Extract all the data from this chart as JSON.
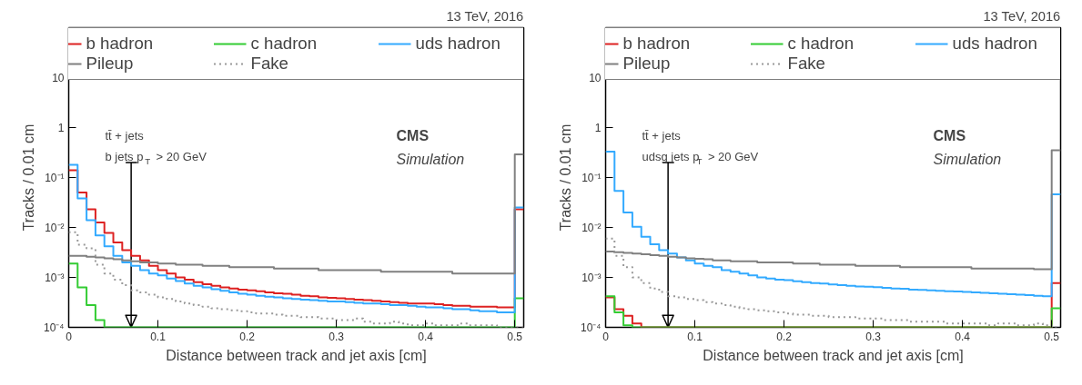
{
  "chart_data": [
    {
      "type": "histogram",
      "title": "13 TeV, 2016",
      "xlabel": "Distance between track and jet axis [cm]",
      "ylabel": "Tracks / 0.01 cm",
      "annotations": [
        "tt̄ + jets",
        "b jets p$_{T}$ > 20 GeV",
        "CMS",
        "Simulation"
      ],
      "bins": [
        0,
        0.01,
        0.02,
        0.03,
        0.04,
        0.05,
        0.06,
        0.07,
        0.08,
        0.09,
        0.1,
        0.11,
        0.12,
        0.13,
        0.14,
        0.15,
        0.16,
        0.17,
        0.18,
        0.19,
        0.2,
        0.21,
        0.22,
        0.23,
        0.24,
        0.25,
        0.26,
        0.27,
        0.28,
        0.29,
        0.3,
        0.31,
        0.32,
        0.33,
        0.34,
        0.35,
        0.36,
        0.37,
        0.38,
        0.39,
        0.4,
        0.41,
        0.42,
        0.43,
        0.44,
        0.45,
        0.46,
        0.47,
        0.48,
        0.49,
        0.5,
        0.51
      ],
      "series": [
        {
          "name": "b hadron",
          "color": "#dd2222",
          "line_style": "solid",
          "values": [
            0.14,
            0.05,
            0.023,
            0.0126,
            0.0078,
            0.005,
            0.0035,
            0.0027,
            0.0022,
            0.0017,
            0.0014,
            0.0012,
            0.001,
            0.0009,
            0.0008,
            0.00073,
            0.00068,
            0.00063,
            0.0006,
            0.00057,
            0.00055,
            0.00053,
            0.0005,
            0.00048,
            0.00047,
            0.00045,
            0.00043,
            0.00042,
            0.0004,
            0.00039,
            0.00038,
            0.00037,
            0.00036,
            0.00035,
            0.00034,
            0.00033,
            0.00032,
            0.00031,
            0.0003,
            0.0003,
            0.0003,
            0.00029,
            0.00028,
            0.00027,
            0.00027,
            0.00026,
            0.00026,
            0.00026,
            0.00025,
            0.00025,
            0.023
          ]
        },
        {
          "name": "c hadron",
          "color": "#33cc33",
          "line_style": "solid",
          "values": [
            0.0019,
            0.00063,
            0.00028,
            0.00014,
            0.0001,
            0.0001,
            0.0001,
            0.0001,
            0.0001,
            0.0001,
            0.0001,
            0.0001,
            0.0001,
            0.0001,
            0.0001,
            0.0001,
            0.0001,
            0.0001,
            0.0001,
            0.0001,
            0.0001,
            0.0001,
            0.0001,
            0.0001,
            0.0001,
            0.0001,
            0.0001,
            0.0001,
            0.0001,
            0.0001,
            0.0001,
            0.0001,
            0.0001,
            0.0001,
            0.0001,
            0.0001,
            0.0001,
            0.0001,
            0.0001,
            0.0001,
            0.0001,
            0.0001,
            0.0001,
            0.0001,
            0.0001,
            0.0001,
            0.0001,
            0.0001,
            0.0001,
            0.0001,
            0.00038
          ]
        },
        {
          "name": "uds hadron",
          "color": "#33aaff",
          "line_style": "solid",
          "values": [
            0.18,
            0.038,
            0.014,
            0.0069,
            0.0042,
            0.0027,
            0.002,
            0.0017,
            0.0014,
            0.0012,
            0.0011,
            0.00095,
            0.00085,
            0.00075,
            0.00068,
            0.00063,
            0.00058,
            0.00054,
            0.0005,
            0.00047,
            0.00045,
            0.00043,
            0.00041,
            0.0004,
            0.00038,
            0.00037,
            0.00036,
            0.00035,
            0.00034,
            0.00033,
            0.00033,
            0.00032,
            0.00031,
            0.0003,
            0.0003,
            0.00029,
            0.00028,
            0.00028,
            0.00027,
            0.00026,
            0.00025,
            0.00025,
            0.00024,
            0.00023,
            0.00023,
            0.00022,
            0.00021,
            0.00021,
            0.0002,
            0.0002,
            0.025
          ]
        },
        {
          "name": "Pileup",
          "color": "#808080",
          "line_style": "solid",
          "values": [
            0.0027,
            0.0027,
            0.0026,
            0.0025,
            0.0024,
            0.0023,
            0.0022,
            0.0021,
            0.002,
            0.002,
            0.0019,
            0.0019,
            0.0018,
            0.0018,
            0.0018,
            0.0017,
            0.0017,
            0.0017,
            0.0016,
            0.0016,
            0.0016,
            0.0016,
            0.0016,
            0.0015,
            0.0015,
            0.0015,
            0.0015,
            0.0015,
            0.0014,
            0.0014,
            0.0014,
            0.0014,
            0.0014,
            0.0014,
            0.0014,
            0.0013,
            0.0013,
            0.0013,
            0.0013,
            0.0013,
            0.0013,
            0.0013,
            0.0013,
            0.0012,
            0.0012,
            0.0012,
            0.0012,
            0.0012,
            0.0012,
            0.0012,
            0.29
          ]
        },
        {
          "name": "Fake",
          "color": "#999999",
          "line_style": "dotted",
          "values": [
            0.008,
            0.0045,
            0.0038,
            0.0018,
            0.0012,
            0.0009,
            0.0007,
            0.00055,
            0.0005,
            0.00045,
            0.0004,
            0.00037,
            0.00033,
            0.0003,
            0.00028,
            0.00026,
            0.00024,
            0.00023,
            0.00022,
            0.00021,
            0.0002,
            0.00019,
            0.00019,
            0.00018,
            0.00017,
            0.00017,
            0.00016,
            0.00016,
            0.00015,
            0.00015,
            0.00014,
            0.00014,
            0.00015,
            0.00013,
            0.00012,
            0.00012,
            0.00013,
            0.00012,
            0.00011,
            0.00011,
            0.00012,
            0.00011,
            0.00011,
            0.00011,
            0.00012,
            0.00011,
            0.00011,
            0.00011,
            0.0001,
            0.0001,
            0.0001
          ]
        }
      ],
      "xlim": [
        0,
        0.51
      ],
      "xticks": [
        0,
        0.1,
        0.2,
        0.3,
        0.4,
        0.5
      ],
      "ylim": [
        0.0001,
        100
      ],
      "log": "y",
      "yticks": [
        {
          "value": 0.0001,
          "label": "10⁻⁴"
        },
        {
          "value": 0.001,
          "label": "10⁻³"
        },
        {
          "value": 0.01,
          "label": "10⁻²"
        },
        {
          "value": 0.1,
          "label": "10⁻¹"
        },
        1,
        10
      ],
      "ref_lines": [
        {
          "axis": "x",
          "value": 0.07,
          "color": "#000000"
        }
      ],
      "legend": "top",
      "grid": false
    },
    {
      "type": "histogram",
      "title": "13 TeV, 2016",
      "xlabel": "Distance between track and jet axis [cm]",
      "ylabel": "Tracks / 0.01 cm",
      "annotations": [
        "tt̄ + jets",
        "udsg jets p$_{T}$ > 20 GeV",
        "CMS",
        "Simulation"
      ],
      "bins": [
        0,
        0.01,
        0.02,
        0.03,
        0.04,
        0.05,
        0.06,
        0.07,
        0.08,
        0.09,
        0.1,
        0.11,
        0.12,
        0.13,
        0.14,
        0.15,
        0.16,
        0.17,
        0.18,
        0.19,
        0.2,
        0.21,
        0.22,
        0.23,
        0.24,
        0.25,
        0.26,
        0.27,
        0.28,
        0.29,
        0.3,
        0.31,
        0.32,
        0.33,
        0.34,
        0.35,
        0.36,
        0.37,
        0.38,
        0.39,
        0.4,
        0.41,
        0.42,
        0.43,
        0.44,
        0.45,
        0.46,
        0.47,
        0.48,
        0.49,
        0.5,
        0.51
      ],
      "series": [
        {
          "name": "b hadron",
          "color": "#dd2222",
          "line_style": "solid",
          "values": [
            0.0004,
            0.00023,
            0.00017,
            0.00012,
            0.0001,
            0.0001,
            0.0001,
            0.0001,
            0.0001,
            0.0001,
            0.0001,
            0.0001,
            0.0001,
            0.0001,
            0.0001,
            0.0001,
            0.0001,
            0.0001,
            0.0001,
            0.0001,
            0.0001,
            0.0001,
            0.0001,
            0.0001,
            0.0001,
            0.0001,
            0.0001,
            0.0001,
            0.0001,
            0.0001,
            0.0001,
            0.0001,
            0.0001,
            0.0001,
            0.0001,
            0.0001,
            0.0001,
            0.0001,
            0.0001,
            0.0001,
            0.0001,
            0.0001,
            0.0001,
            0.0001,
            0.0001,
            0.0001,
            0.0001,
            0.0001,
            0.0001,
            0.0001,
            0.00077
          ]
        },
        {
          "name": "c hadron",
          "color": "#33cc33",
          "line_style": "solid",
          "values": [
            0.00042,
            0.0002,
            0.00011,
            0.0001,
            0.0001,
            0.0001,
            0.0001,
            0.0001,
            0.0001,
            0.0001,
            0.0001,
            0.0001,
            0.0001,
            0.0001,
            0.0001,
            0.0001,
            0.0001,
            0.0001,
            0.0001,
            0.0001,
            0.0001,
            0.0001,
            0.0001,
            0.0001,
            0.0001,
            0.0001,
            0.0001,
            0.0001,
            0.0001,
            0.0001,
            0.0001,
            0.0001,
            0.0001,
            0.0001,
            0.0001,
            0.0001,
            0.0001,
            0.0001,
            0.0001,
            0.0001,
            0.0001,
            0.0001,
            0.0001,
            0.0001,
            0.0001,
            0.0001,
            0.0001,
            0.0001,
            0.0001,
            0.0001,
            0.00024
          ]
        },
        {
          "name": "uds hadron",
          "color": "#33aaff",
          "line_style": "solid",
          "values": [
            0.33,
            0.054,
            0.02,
            0.0103,
            0.0065,
            0.0046,
            0.0035,
            0.003,
            0.0025,
            0.0022,
            0.0019,
            0.0017,
            0.0016,
            0.0014,
            0.0013,
            0.0012,
            0.0011,
            0.001,
            0.00095,
            0.0009,
            0.00088,
            0.00084,
            0.0008,
            0.00077,
            0.00075,
            0.00072,
            0.0007,
            0.00068,
            0.00066,
            0.00065,
            0.00064,
            0.00062,
            0.0006,
            0.00059,
            0.00057,
            0.00056,
            0.00055,
            0.00054,
            0.00053,
            0.00052,
            0.00051,
            0.0005,
            0.00049,
            0.00048,
            0.00047,
            0.00046,
            0.00045,
            0.00044,
            0.00043,
            0.00042,
            0.046
          ]
        },
        {
          "name": "Pileup",
          "color": "#808080",
          "line_style": "solid",
          "values": [
            0.0033,
            0.0032,
            0.0031,
            0.003,
            0.0029,
            0.0028,
            0.0027,
            0.0026,
            0.0025,
            0.0024,
            0.00235,
            0.0023,
            0.0022,
            0.0022,
            0.0021,
            0.0021,
            0.0021,
            0.002,
            0.002,
            0.002,
            0.002,
            0.0019,
            0.0019,
            0.0019,
            0.0018,
            0.0018,
            0.0018,
            0.0018,
            0.0017,
            0.0017,
            0.0017,
            0.0017,
            0.0017,
            0.0016,
            0.0016,
            0.0016,
            0.0016,
            0.0016,
            0.0016,
            0.0016,
            0.0016,
            0.0015,
            0.0015,
            0.0015,
            0.0015,
            0.0015,
            0.0015,
            0.0015,
            0.00145,
            0.00145,
            0.35
          ]
        },
        {
          "name": "Fake",
          "color": "#999999",
          "line_style": "dotted",
          "values": [
            0.006,
            0.0027,
            0.0016,
            0.001,
            0.00077,
            0.0006,
            0.00051,
            0.00042,
            0.0004,
            0.00037,
            0.00035,
            0.00032,
            0.0003,
            0.00028,
            0.00026,
            0.00024,
            0.00023,
            0.00022,
            0.00021,
            0.0002,
            0.00019,
            0.00018,
            0.00018,
            0.00017,
            0.00017,
            0.00016,
            0.00016,
            0.00016,
            0.00015,
            0.00015,
            0.00015,
            0.00014,
            0.00014,
            0.00014,
            0.00013,
            0.00013,
            0.00013,
            0.00013,
            0.00012,
            0.00012,
            0.00012,
            0.00012,
            0.00012,
            0.00011,
            0.00012,
            0.00012,
            0.00011,
            0.00011,
            0.00012,
            0.00011,
            0.0001
          ]
        }
      ],
      "xlim": [
        0,
        0.51
      ],
      "xticks": [
        0,
        0.1,
        0.2,
        0.3,
        0.4,
        0.5
      ],
      "ylim": [
        0.0001,
        100
      ],
      "log": "y",
      "yticks": [
        {
          "value": 0.0001,
          "label": "10⁻⁴"
        },
        {
          "value": 0.001,
          "label": "10⁻³"
        },
        {
          "value": 0.01,
          "label": "10⁻²"
        },
        {
          "value": 0.1,
          "label": "10⁻¹"
        },
        1,
        10
      ],
      "ref_lines": [
        {
          "axis": "x",
          "value": 0.07,
          "color": "#000000"
        }
      ],
      "legend": "top",
      "grid": false
    }
  ]
}
